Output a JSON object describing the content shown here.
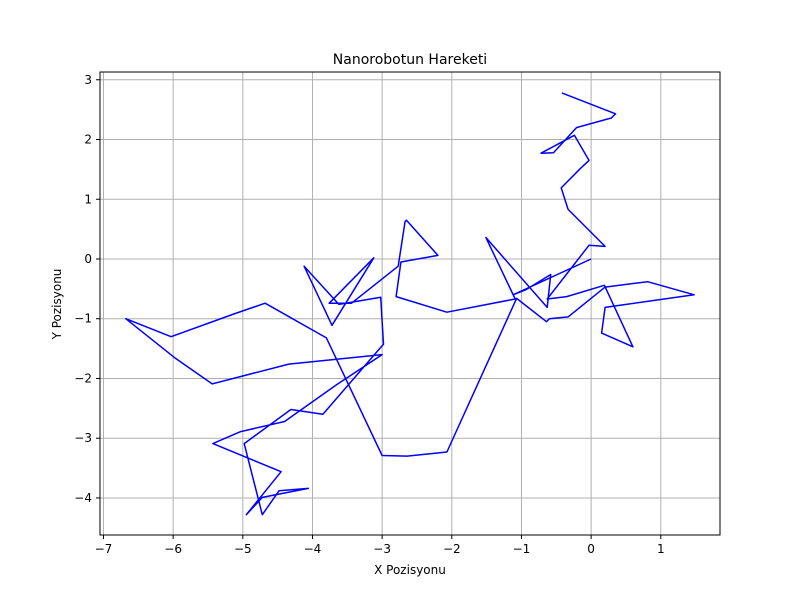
{
  "chart_data": {
    "type": "line",
    "title": "Nanorobotun Hareketi",
    "xlabel": "X Pozisyonu",
    "ylabel": "Y Pozisyonu",
    "xlim": [
      -7.05,
      1.85
    ],
    "ylim": [
      -4.62,
      3.13
    ],
    "xticks": [
      -7,
      -6,
      -5,
      -4,
      -3,
      -2,
      -1,
      0,
      1
    ],
    "yticks": [
      -4,
      -3,
      -2,
      -1,
      0,
      1,
      2,
      3
    ],
    "grid": true,
    "line_color": "#0000ff",
    "series": [
      {
        "x": [
          0.0,
          -1.12,
          -0.93,
          -0.58,
          -0.63,
          -1.51,
          -1.09,
          -2.07,
          -2.8,
          -2.73,
          -2.2,
          -2.65,
          -2.67,
          -2.77,
          -3.44,
          -3.76,
          -3.12,
          -3.72,
          -4.12,
          -3.62,
          -3.02,
          -2.98,
          -3.02,
          -3.85,
          -4.31,
          -4.98,
          -4.72,
          -4.48,
          -4.06,
          -4.72,
          -4.95,
          -4.45,
          -5.43,
          -5.03,
          -4.4,
          -3.65,
          -3.0,
          -4.34,
          -5.44,
          -5.98,
          -6.68,
          -6.03,
          -5.13,
          -4.68,
          -3.8,
          -3.0,
          -2.64,
          -2.07,
          -1.07,
          -0.64,
          -0.6,
          -0.33,
          0.2,
          0.81,
          1.48,
          0.2,
          0.15,
          0.6,
          0.19,
          -0.35,
          -0.63,
          -0.03,
          0.2,
          -0.33,
          -0.43,
          -0.15,
          -0.03,
          -0.24,
          -0.72,
          -0.54,
          -0.21,
          0.29,
          0.35,
          -0.42
        ],
        "y": [
          0.0,
          -0.6,
          -0.51,
          -0.26,
          -0.81,
          0.36,
          -0.67,
          -0.89,
          -0.63,
          -0.05,
          0.06,
          0.65,
          0.63,
          -0.12,
          -0.74,
          -0.74,
          0.02,
          -1.11,
          -0.12,
          -0.76,
          -0.64,
          -1.43,
          -1.48,
          -2.6,
          -2.52,
          -3.09,
          -4.28,
          -3.88,
          -3.84,
          -3.99,
          -4.28,
          -3.56,
          -3.09,
          -2.89,
          -2.72,
          -2.1,
          -1.6,
          -1.76,
          -2.09,
          -1.65,
          -1.0,
          -1.3,
          -0.92,
          -0.74,
          -1.32,
          -3.29,
          -3.3,
          -3.23,
          -0.66,
          -1.05,
          -1.0,
          -0.97,
          -0.47,
          -0.38,
          -0.6,
          -0.81,
          -1.24,
          -1.47,
          -0.44,
          -0.63,
          -0.67,
          0.23,
          0.21,
          0.83,
          1.19,
          1.52,
          1.65,
          2.07,
          1.77,
          1.78,
          2.2,
          2.36,
          2.43,
          2.78
        ]
      }
    ]
  }
}
